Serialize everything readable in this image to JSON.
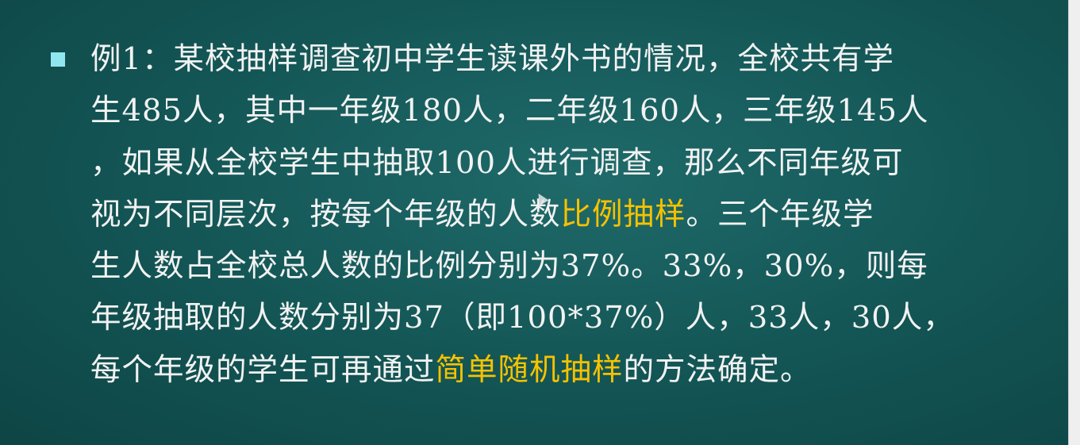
{
  "slide": {
    "background": "#135454",
    "text_color": "#f2f2f2",
    "highlight_color": "#f6c200",
    "bullet_color": "#8fe6ee",
    "paragraph": {
      "line1": "例1：某校抽样调查初中学生读课外书的情况，全校共有学",
      "line2": "生485人，其中一年级180人，二年级160人，三年级145人",
      "line3": "，如果从全校学生中抽取100人进行调查，那么不同年级可",
      "line4_before": "视为不同层次，按每个年级的人数",
      "line4_highlight": "比例抽样",
      "line4_after": "。三个年级学",
      "line5": "生人数占全校总人数的比例分别为37%。33%，30%，则每",
      "line6": "年级抽取的人数分别为37（即100*37%）人，33人，30人，",
      "line7_before": "每个年级的学生可再通过",
      "line7_highlight": "简单随机抽样",
      "line7_after": "的方法确定。"
    }
  }
}
